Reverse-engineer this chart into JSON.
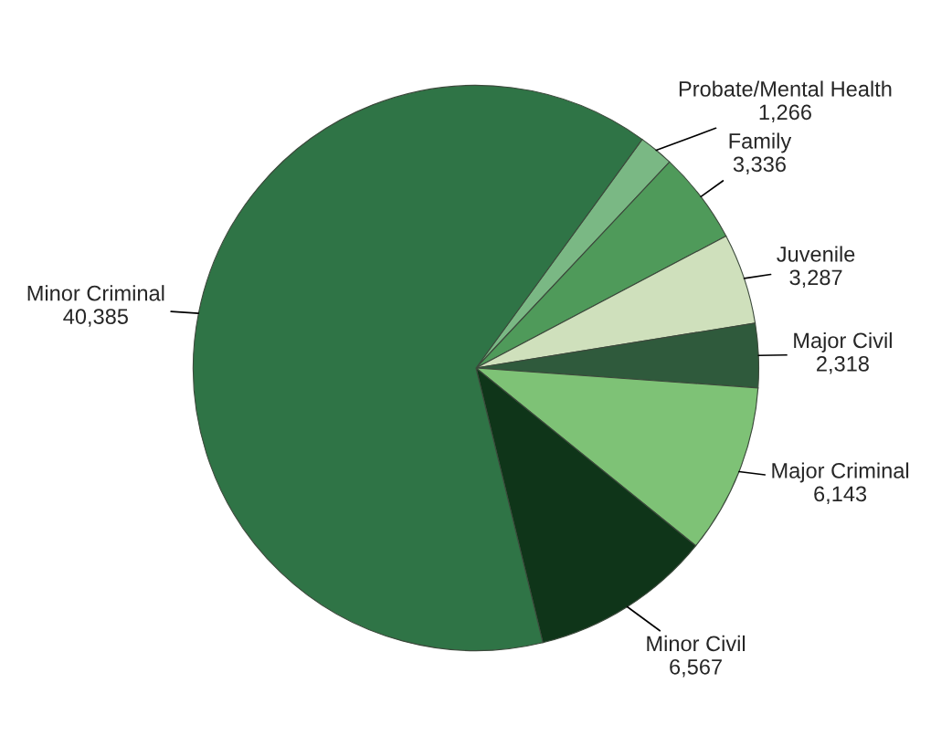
{
  "chart_data": {
    "type": "pie",
    "categories": [
      "Probate/Mental Health",
      "Family",
      "Juvenile",
      "Major Civil",
      "Major Criminal",
      "Minor Civil",
      "Minor Criminal"
    ],
    "values": [
      1266,
      3336,
      3287,
      2318,
      6143,
      6567,
      40385
    ],
    "colors": [
      "#7ab884",
      "#4f9a5a",
      "#cfe0bc",
      "#2f5a3c",
      "#7ec276",
      "#0f3519",
      "#2f7446"
    ],
    "value_labels": [
      "1,266",
      "3,336",
      "3,287",
      "2,318",
      "6,143",
      "6,567",
      "40,385"
    ]
  }
}
